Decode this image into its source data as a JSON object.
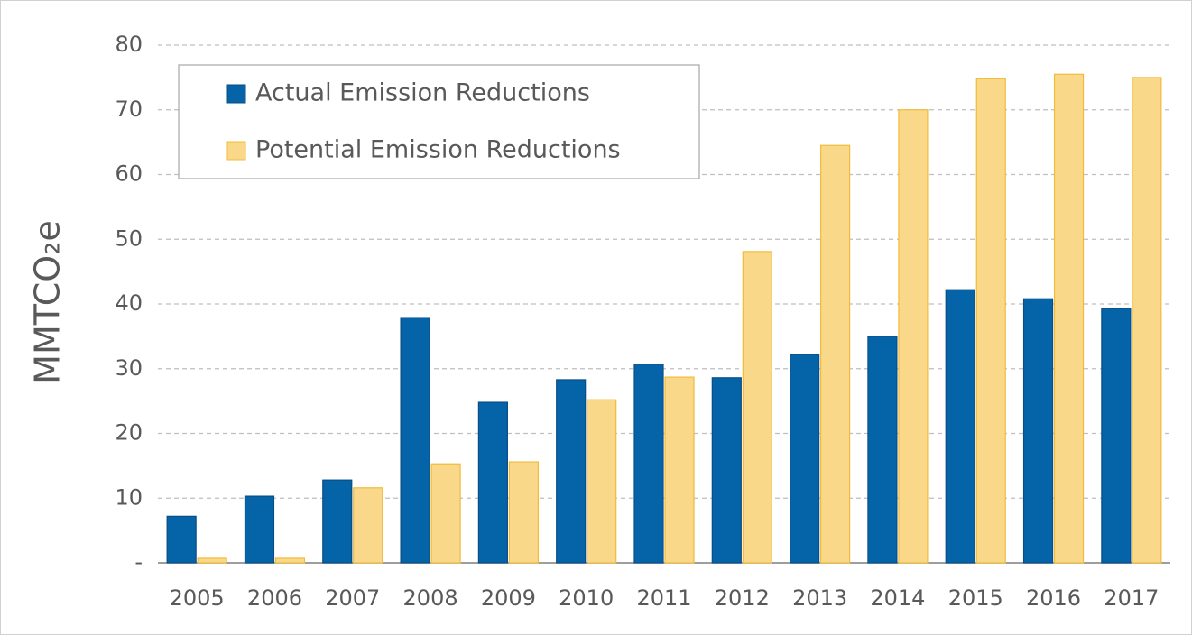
{
  "chart_data": {
    "type": "bar",
    "y_label": "MMTCO₂e",
    "categories": [
      "2005",
      "2006",
      "2007",
      "2008",
      "2009",
      "2010",
      "2011",
      "2012",
      "2013",
      "2014",
      "2015",
      "2016",
      "2017"
    ],
    "series": [
      {
        "name": "Actual Emission Reductions",
        "color": "#0563a8",
        "values": [
          7.2,
          10.3,
          12.8,
          37.9,
          24.8,
          28.3,
          30.7,
          28.6,
          32.2,
          35.0,
          42.2,
          40.8,
          39.3
        ]
      },
      {
        "name": "Potential Emission Reductions",
        "color": "#f9d88a",
        "values": [
          0.7,
          0.7,
          11.6,
          15.3,
          15.6,
          25.2,
          28.7,
          48.1,
          64.5,
          70.0,
          74.8,
          75.5,
          75.0
        ]
      }
    ],
    "ylim": [
      0,
      80
    ],
    "yticks": [
      {
        "value": 0,
        "label": "-"
      },
      10,
      20,
      30,
      40,
      50,
      60,
      70,
      80
    ],
    "grid": true,
    "legend": "top-left"
  }
}
